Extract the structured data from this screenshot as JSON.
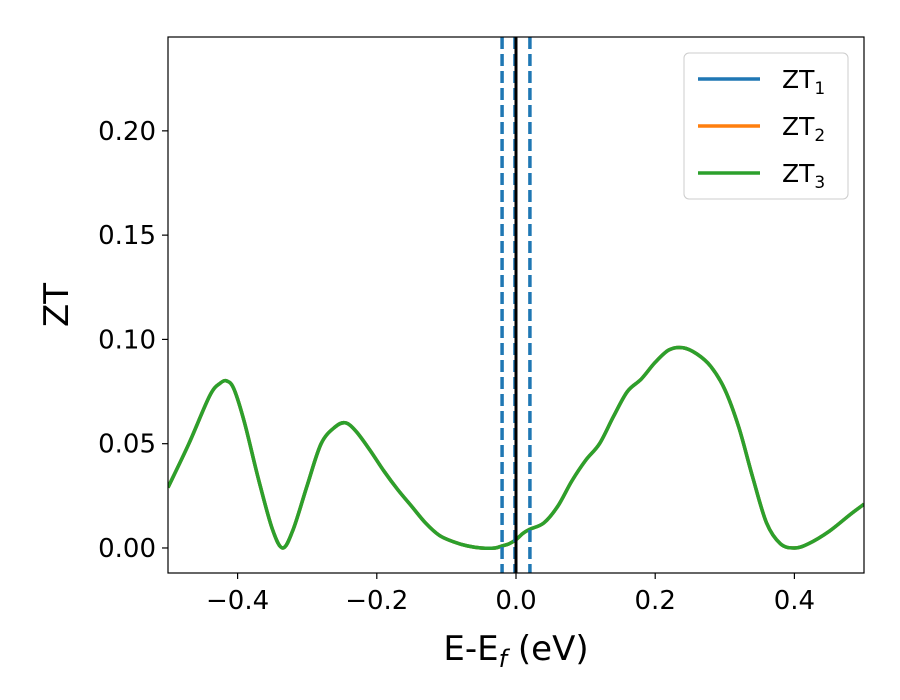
{
  "chart_data": {
    "type": "line",
    "title": "",
    "xlabel": "E-E",
    "xlabel_sub": "f",
    "xlabel_unit": " (eV)",
    "ylabel": "ZT",
    "xlim": [
      -0.5,
      0.5
    ],
    "ylim": [
      -0.012,
      0.245
    ],
    "xticks": [
      -0.4,
      -0.2,
      0.0,
      0.2,
      0.4
    ],
    "xtick_labels": [
      "−0.4",
      "−0.2",
      "0.0",
      "0.2",
      "0.4"
    ],
    "yticks": [
      0.0,
      0.05,
      0.1,
      0.15,
      0.2
    ],
    "ytick_labels": [
      "0.00",
      "0.05",
      "0.10",
      "0.15",
      "0.20"
    ],
    "grid": false,
    "legend_position": "top-right",
    "legend": [
      {
        "base": "ZT",
        "sub": "1",
        "color": "#1f77b4"
      },
      {
        "base": "ZT",
        "sub": "2",
        "color": "#ff7f0e"
      },
      {
        "base": "ZT",
        "sub": "3",
        "color": "#2ca02c"
      }
    ],
    "x": [
      -0.5,
      -0.47,
      -0.44,
      -0.425,
      -0.415,
      -0.405,
      -0.39,
      -0.37,
      -0.35,
      -0.335,
      -0.32,
      -0.3,
      -0.28,
      -0.26,
      -0.245,
      -0.23,
      -0.21,
      -0.19,
      -0.17,
      -0.15,
      -0.13,
      -0.11,
      -0.09,
      -0.07,
      -0.05,
      -0.03,
      -0.02,
      -0.01,
      0.0,
      0.01,
      0.02,
      0.04,
      0.06,
      0.08,
      0.1,
      0.12,
      0.14,
      0.16,
      0.18,
      0.2,
      0.22,
      0.24,
      0.26,
      0.28,
      0.3,
      0.32,
      0.34,
      0.36,
      0.38,
      0.4,
      0.42,
      0.45,
      0.48,
      0.5
    ],
    "series": [
      {
        "name": "ZT1",
        "color": "#1f77b4",
        "values": [
          0.029,
          0.05,
          0.073,
          0.079,
          0.08,
          0.076,
          0.06,
          0.033,
          0.009,
          0.0,
          0.009,
          0.03,
          0.05,
          0.058,
          0.06,
          0.056,
          0.047,
          0.037,
          0.028,
          0.02,
          0.012,
          0.006,
          0.003,
          0.001,
          0.0,
          0.0,
          0.001,
          0.002,
          0.004,
          0.007,
          0.009,
          0.012,
          0.02,
          0.032,
          0.042,
          0.05,
          0.063,
          0.075,
          0.081,
          0.089,
          0.095,
          0.096,
          0.093,
          0.087,
          0.076,
          0.058,
          0.034,
          0.012,
          0.002,
          0.0,
          0.002,
          0.008,
          0.016,
          0.021
        ]
      },
      {
        "name": "ZT2",
        "color": "#ff7f0e",
        "values": [
          0.029,
          0.05,
          0.073,
          0.079,
          0.08,
          0.076,
          0.06,
          0.033,
          0.009,
          0.0,
          0.009,
          0.03,
          0.05,
          0.058,
          0.06,
          0.056,
          0.047,
          0.037,
          0.028,
          0.02,
          0.012,
          0.006,
          0.003,
          0.001,
          0.0,
          0.0,
          0.001,
          0.002,
          0.004,
          0.007,
          0.009,
          0.012,
          0.02,
          0.032,
          0.042,
          0.05,
          0.063,
          0.075,
          0.081,
          0.089,
          0.095,
          0.096,
          0.093,
          0.087,
          0.076,
          0.058,
          0.034,
          0.012,
          0.002,
          0.0,
          0.002,
          0.008,
          0.016,
          0.021
        ]
      },
      {
        "name": "ZT3",
        "color": "#2ca02c",
        "values": [
          0.029,
          0.05,
          0.073,
          0.079,
          0.08,
          0.076,
          0.06,
          0.033,
          0.009,
          0.0,
          0.009,
          0.03,
          0.05,
          0.058,
          0.06,
          0.056,
          0.047,
          0.037,
          0.028,
          0.02,
          0.012,
          0.006,
          0.003,
          0.001,
          0.0,
          0.0,
          0.001,
          0.002,
          0.004,
          0.007,
          0.009,
          0.012,
          0.02,
          0.032,
          0.042,
          0.05,
          0.063,
          0.075,
          0.081,
          0.089,
          0.095,
          0.096,
          0.093,
          0.087,
          0.076,
          0.058,
          0.034,
          0.012,
          0.002,
          0.0,
          0.002,
          0.008,
          0.016,
          0.021
        ]
      }
    ],
    "vlines": [
      {
        "x": -0.02,
        "style": "dashed",
        "color": "#1f77b4"
      },
      {
        "x": 0.02,
        "style": "dashed",
        "color": "#1f77b4"
      },
      {
        "x": -0.0015,
        "style": "dashed",
        "color": "#1f77b4"
      },
      {
        "x": 0.0,
        "style": "solid",
        "color": "#000000"
      }
    ]
  }
}
